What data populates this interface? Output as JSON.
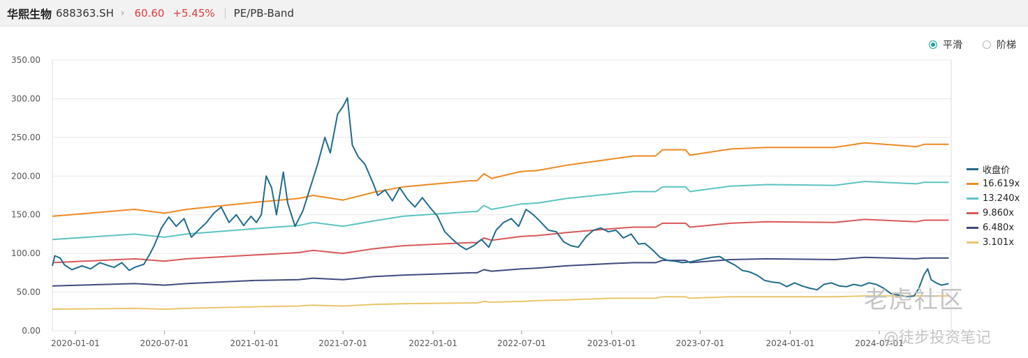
{
  "header": {
    "name": "华熙生物",
    "code": "688363.SH",
    "chevron": "›",
    "price": "60.60",
    "change": "+5.45%",
    "chart_type": "PE/PB-Band"
  },
  "toggles": {
    "smooth": "平滑",
    "step": "阶梯"
  },
  "watermarks": {
    "logo": "老虎社区",
    "author": "@徒步投资笔记"
  },
  "colors": {
    "accent": "#1aa39a",
    "up": "#e4393c"
  },
  "chart_data": {
    "type": "line",
    "ylim": [
      0,
      350
    ],
    "yticks": [
      "0.00",
      "50.00",
      "100.00",
      "150.00",
      "200.00",
      "250.00",
      "300.00",
      "350.00"
    ],
    "xlim": [
      "2019-11-15",
      "2024-11-25"
    ],
    "xticks": [
      {
        "date": "2020-01-01",
        "label": "2020-01-01"
      },
      {
        "date": "2020-07-01",
        "label": "2020-07-01"
      },
      {
        "date": "2021-01-01",
        "label": "2021-01-01"
      },
      {
        "date": "2021-07-01",
        "label": "2021-07-01"
      },
      {
        "date": "2022-01-01",
        "label": "2022-01-01"
      },
      {
        "date": "2022-07-01",
        "label": "2022-07-01"
      },
      {
        "date": "2023-01-01",
        "label": "2023-01-01"
      },
      {
        "date": "2023-07-01",
        "label": "2023-07-01"
      },
      {
        "date": "2024-01-01",
        "label": "2024-01-01"
      },
      {
        "date": "2024-07-01",
        "label": "2024-07-01"
      }
    ],
    "bands": [
      {
        "name": "16.619x",
        "color": "#ee8a22",
        "points": [
          [
            "2019-11-15",
            148
          ],
          [
            "2020-05-01",
            157
          ],
          [
            "2020-07-01",
            152
          ],
          [
            "2020-08-15",
            157
          ],
          [
            "2021-01-01",
            166
          ],
          [
            "2021-04-01",
            171
          ],
          [
            "2021-05-01",
            175
          ],
          [
            "2021-07-01",
            169
          ],
          [
            "2021-09-01",
            179
          ],
          [
            "2021-11-01",
            186
          ],
          [
            "2022-03-20",
            194
          ],
          [
            "2022-04-01",
            194
          ],
          [
            "2022-04-15",
            203
          ],
          [
            "2022-05-01",
            197
          ],
          [
            "2022-07-01",
            206
          ],
          [
            "2022-08-01",
            207
          ],
          [
            "2022-10-01",
            214
          ],
          [
            "2023-01-01",
            222
          ],
          [
            "2023-02-15",
            226
          ],
          [
            "2023-04-01",
            226
          ],
          [
            "2023-04-15",
            234
          ],
          [
            "2023-06-01",
            234
          ],
          [
            "2023-06-10",
            227
          ],
          [
            "2023-09-01",
            235
          ],
          [
            "2023-11-15",
            237
          ],
          [
            "2024-04-01",
            237
          ],
          [
            "2024-06-01",
            243
          ],
          [
            "2024-09-15",
            238
          ],
          [
            "2024-10-01",
            241
          ],
          [
            "2024-11-20",
            241
          ]
        ]
      },
      {
        "name": "13.240x",
        "color": "#5cc3c2",
        "points": [
          [
            "2019-11-15",
            118
          ],
          [
            "2020-05-01",
            125
          ],
          [
            "2020-07-01",
            121
          ],
          [
            "2020-08-15",
            125
          ],
          [
            "2021-01-01",
            132
          ],
          [
            "2021-04-01",
            136
          ],
          [
            "2021-05-01",
            140
          ],
          [
            "2021-07-01",
            135
          ],
          [
            "2021-09-01",
            142
          ],
          [
            "2021-11-01",
            148
          ],
          [
            "2022-03-20",
            154
          ],
          [
            "2022-04-01",
            154
          ],
          [
            "2022-04-15",
            162
          ],
          [
            "2022-05-01",
            157
          ],
          [
            "2022-07-01",
            164
          ],
          [
            "2022-08-01",
            165
          ],
          [
            "2022-10-01",
            171
          ],
          [
            "2023-01-01",
            177
          ],
          [
            "2023-02-15",
            180
          ],
          [
            "2023-04-01",
            180
          ],
          [
            "2023-04-15",
            186
          ],
          [
            "2023-06-01",
            186
          ],
          [
            "2023-06-10",
            180
          ],
          [
            "2023-09-01",
            187
          ],
          [
            "2023-11-15",
            189
          ],
          [
            "2024-04-01",
            188
          ],
          [
            "2024-06-01",
            193
          ],
          [
            "2024-09-15",
            190
          ],
          [
            "2024-10-01",
            192
          ],
          [
            "2024-11-20",
            192
          ]
        ]
      },
      {
        "name": "9.860x",
        "color": "#d95757",
        "points": [
          [
            "2019-11-15",
            88
          ],
          [
            "2020-05-01",
            93
          ],
          [
            "2020-07-01",
            90
          ],
          [
            "2020-08-15",
            93
          ],
          [
            "2021-01-01",
            98
          ],
          [
            "2021-04-01",
            101
          ],
          [
            "2021-05-01",
            104
          ],
          [
            "2021-07-01",
            100
          ],
          [
            "2021-09-01",
            106
          ],
          [
            "2021-11-01",
            110
          ],
          [
            "2022-03-20",
            114
          ],
          [
            "2022-04-01",
            114
          ],
          [
            "2022-04-15",
            120
          ],
          [
            "2022-05-01",
            117
          ],
          [
            "2022-07-01",
            122
          ],
          [
            "2022-08-01",
            123
          ],
          [
            "2022-10-01",
            127
          ],
          [
            "2023-01-01",
            132
          ],
          [
            "2023-02-15",
            134
          ],
          [
            "2023-04-01",
            134
          ],
          [
            "2023-04-15",
            139
          ],
          [
            "2023-06-01",
            139
          ],
          [
            "2023-06-10",
            134
          ],
          [
            "2023-09-01",
            139
          ],
          [
            "2023-11-15",
            141
          ],
          [
            "2024-04-01",
            140
          ],
          [
            "2024-06-01",
            144
          ],
          [
            "2024-09-15",
            141
          ],
          [
            "2024-10-01",
            143
          ],
          [
            "2024-11-20",
            143
          ]
        ]
      },
      {
        "name": "6.480x",
        "color": "#3e4a7e",
        "points": [
          [
            "2019-11-15",
            58
          ],
          [
            "2020-05-01",
            61
          ],
          [
            "2020-07-01",
            59
          ],
          [
            "2020-08-15",
            61
          ],
          [
            "2021-01-01",
            65
          ],
          [
            "2021-04-01",
            66
          ],
          [
            "2021-05-01",
            68
          ],
          [
            "2021-07-01",
            66
          ],
          [
            "2021-09-01",
            70
          ],
          [
            "2021-11-01",
            72
          ],
          [
            "2022-03-20",
            75
          ],
          [
            "2022-04-01",
            75
          ],
          [
            "2022-04-15",
            79
          ],
          [
            "2022-05-01",
            77
          ],
          [
            "2022-07-01",
            80
          ],
          [
            "2022-08-01",
            81
          ],
          [
            "2022-10-01",
            84
          ],
          [
            "2023-01-01",
            87
          ],
          [
            "2023-02-15",
            88
          ],
          [
            "2023-04-01",
            88
          ],
          [
            "2023-04-15",
            91
          ],
          [
            "2023-06-01",
            91
          ],
          [
            "2023-06-10",
            88
          ],
          [
            "2023-09-01",
            92
          ],
          [
            "2023-11-15",
            93
          ],
          [
            "2024-04-01",
            92
          ],
          [
            "2024-06-01",
            95
          ],
          [
            "2024-09-15",
            93
          ],
          [
            "2024-10-01",
            94
          ],
          [
            "2024-11-20",
            94
          ]
        ]
      },
      {
        "name": "3.101x",
        "color": "#e9c66a",
        "points": [
          [
            "2019-11-15",
            28
          ],
          [
            "2020-05-01",
            29
          ],
          [
            "2020-07-01",
            28
          ],
          [
            "2020-08-15",
            29
          ],
          [
            "2021-01-01",
            31
          ],
          [
            "2021-04-01",
            32
          ],
          [
            "2021-05-01",
            33
          ],
          [
            "2021-07-01",
            32
          ],
          [
            "2021-09-01",
            34
          ],
          [
            "2021-11-01",
            35
          ],
          [
            "2022-03-20",
            36
          ],
          [
            "2022-04-01",
            36
          ],
          [
            "2022-04-15",
            38
          ],
          [
            "2022-05-01",
            37
          ],
          [
            "2022-07-01",
            38
          ],
          [
            "2022-08-01",
            39
          ],
          [
            "2022-10-01",
            40
          ],
          [
            "2023-01-01",
            42
          ],
          [
            "2023-02-15",
            42
          ],
          [
            "2023-04-01",
            42
          ],
          [
            "2023-04-15",
            44
          ],
          [
            "2023-06-01",
            44
          ],
          [
            "2023-06-10",
            42
          ],
          [
            "2023-09-01",
            44
          ],
          [
            "2023-11-15",
            44
          ],
          [
            "2024-04-01",
            44
          ],
          [
            "2024-06-01",
            45
          ],
          [
            "2024-09-15",
            45
          ],
          [
            "2024-10-01",
            45
          ],
          [
            "2024-11-20",
            45
          ]
        ]
      }
    ],
    "close": {
      "name": "收盘价",
      "color": "#1f6b8d",
      "points": [
        [
          "2019-11-15",
          84
        ],
        [
          "2019-11-20",
          97
        ],
        [
          "2019-12-01",
          94
        ],
        [
          "2019-12-10",
          85
        ],
        [
          "2019-12-25",
          79
        ],
        [
          "2020-01-15",
          84
        ],
        [
          "2020-02-01",
          80
        ],
        [
          "2020-02-20",
          88
        ],
        [
          "2020-03-05",
          85
        ],
        [
          "2020-03-20",
          82
        ],
        [
          "2020-04-05",
          88
        ],
        [
          "2020-04-20",
          78
        ],
        [
          "2020-05-01",
          82
        ],
        [
          "2020-05-20",
          86
        ],
        [
          "2020-06-01",
          99
        ],
        [
          "2020-06-10",
          110
        ],
        [
          "2020-06-25",
          133
        ],
        [
          "2020-07-10",
          147
        ],
        [
          "2020-07-25",
          135
        ],
        [
          "2020-08-10",
          145
        ],
        [
          "2020-08-25",
          121
        ],
        [
          "2020-09-10",
          131
        ],
        [
          "2020-09-25",
          140
        ],
        [
          "2020-10-10",
          152
        ],
        [
          "2020-10-25",
          160
        ],
        [
          "2020-11-10",
          140
        ],
        [
          "2020-11-25",
          150
        ],
        [
          "2020-12-10",
          136
        ],
        [
          "2020-12-25",
          148
        ],
        [
          "2021-01-05",
          140
        ],
        [
          "2021-01-15",
          150
        ],
        [
          "2021-01-25",
          200
        ],
        [
          "2021-02-05",
          185
        ],
        [
          "2021-02-15",
          150
        ],
        [
          "2021-03-01",
          205
        ],
        [
          "2021-03-10",
          165
        ],
        [
          "2021-03-25",
          135
        ],
        [
          "2021-04-10",
          155
        ],
        [
          "2021-04-25",
          185
        ],
        [
          "2021-05-10",
          215
        ],
        [
          "2021-05-25",
          250
        ],
        [
          "2021-06-05",
          230
        ],
        [
          "2021-06-20",
          280
        ],
        [
          "2021-07-01",
          290
        ],
        [
          "2021-07-10",
          301
        ],
        [
          "2021-07-20",
          240
        ],
        [
          "2021-08-01",
          225
        ],
        [
          "2021-08-15",
          215
        ],
        [
          "2021-09-01",
          190
        ],
        [
          "2021-09-10",
          175
        ],
        [
          "2021-09-25",
          182
        ],
        [
          "2021-10-10",
          168
        ],
        [
          "2021-10-25",
          185
        ],
        [
          "2021-11-10",
          170
        ],
        [
          "2021-11-25",
          160
        ],
        [
          "2021-12-10",
          172
        ],
        [
          "2021-12-25",
          160
        ],
        [
          "2022-01-10",
          148
        ],
        [
          "2022-01-25",
          128
        ],
        [
          "2022-02-10",
          118
        ],
        [
          "2022-02-25",
          110
        ],
        [
          "2022-03-10",
          105
        ],
        [
          "2022-03-25",
          110
        ],
        [
          "2022-04-10",
          118
        ],
        [
          "2022-04-25",
          108
        ],
        [
          "2022-05-10",
          130
        ],
        [
          "2022-05-25",
          140
        ],
        [
          "2022-06-10",
          145
        ],
        [
          "2022-06-25",
          135
        ],
        [
          "2022-07-10",
          157
        ],
        [
          "2022-07-25",
          150
        ],
        [
          "2022-08-10",
          140
        ],
        [
          "2022-08-25",
          130
        ],
        [
          "2022-09-10",
          128
        ],
        [
          "2022-09-25",
          115
        ],
        [
          "2022-10-10",
          110
        ],
        [
          "2022-10-25",
          108
        ],
        [
          "2022-11-10",
          122
        ],
        [
          "2022-11-25",
          130
        ],
        [
          "2022-12-10",
          133
        ],
        [
          "2022-12-25",
          128
        ],
        [
          "2023-01-10",
          130
        ],
        [
          "2023-01-25",
          120
        ],
        [
          "2023-02-10",
          125
        ],
        [
          "2023-02-25",
          112
        ],
        [
          "2023-03-10",
          113
        ],
        [
          "2023-03-25",
          105
        ],
        [
          "2023-04-10",
          95
        ],
        [
          "2023-04-25",
          91
        ],
        [
          "2023-05-10",
          90
        ],
        [
          "2023-05-25",
          88
        ],
        [
          "2023-06-10",
          89
        ],
        [
          "2023-06-25",
          91
        ],
        [
          "2023-07-10",
          93
        ],
        [
          "2023-07-25",
          95
        ],
        [
          "2023-08-10",
          96
        ],
        [
          "2023-08-25",
          90
        ],
        [
          "2023-09-10",
          85
        ],
        [
          "2023-09-25",
          78
        ],
        [
          "2023-10-10",
          76
        ],
        [
          "2023-10-25",
          72
        ],
        [
          "2023-11-10",
          65
        ],
        [
          "2023-11-25",
          63
        ],
        [
          "2023-12-10",
          62
        ],
        [
          "2023-12-25",
          57
        ],
        [
          "2024-01-10",
          62
        ],
        [
          "2024-01-25",
          58
        ],
        [
          "2024-02-10",
          55
        ],
        [
          "2024-02-25",
          53
        ],
        [
          "2024-03-10",
          60
        ],
        [
          "2024-03-25",
          62
        ],
        [
          "2024-04-10",
          58
        ],
        [
          "2024-04-25",
          57
        ],
        [
          "2024-05-10",
          60
        ],
        [
          "2024-05-25",
          58
        ],
        [
          "2024-06-10",
          62
        ],
        [
          "2024-06-25",
          60
        ],
        [
          "2024-07-10",
          55
        ],
        [
          "2024-07-25",
          48
        ],
        [
          "2024-08-10",
          46
        ],
        [
          "2024-08-25",
          44
        ],
        [
          "2024-09-10",
          45
        ],
        [
          "2024-09-20",
          55
        ],
        [
          "2024-09-30",
          72
        ],
        [
          "2024-10-08",
          80
        ],
        [
          "2024-10-15",
          66
        ],
        [
          "2024-10-25",
          62
        ],
        [
          "2024-11-05",
          59
        ],
        [
          "2024-11-20",
          61
        ]
      ]
    },
    "legend": [
      "收盘价",
      "16.619x",
      "13.240x",
      "9.860x",
      "6.480x",
      "3.101x"
    ]
  }
}
